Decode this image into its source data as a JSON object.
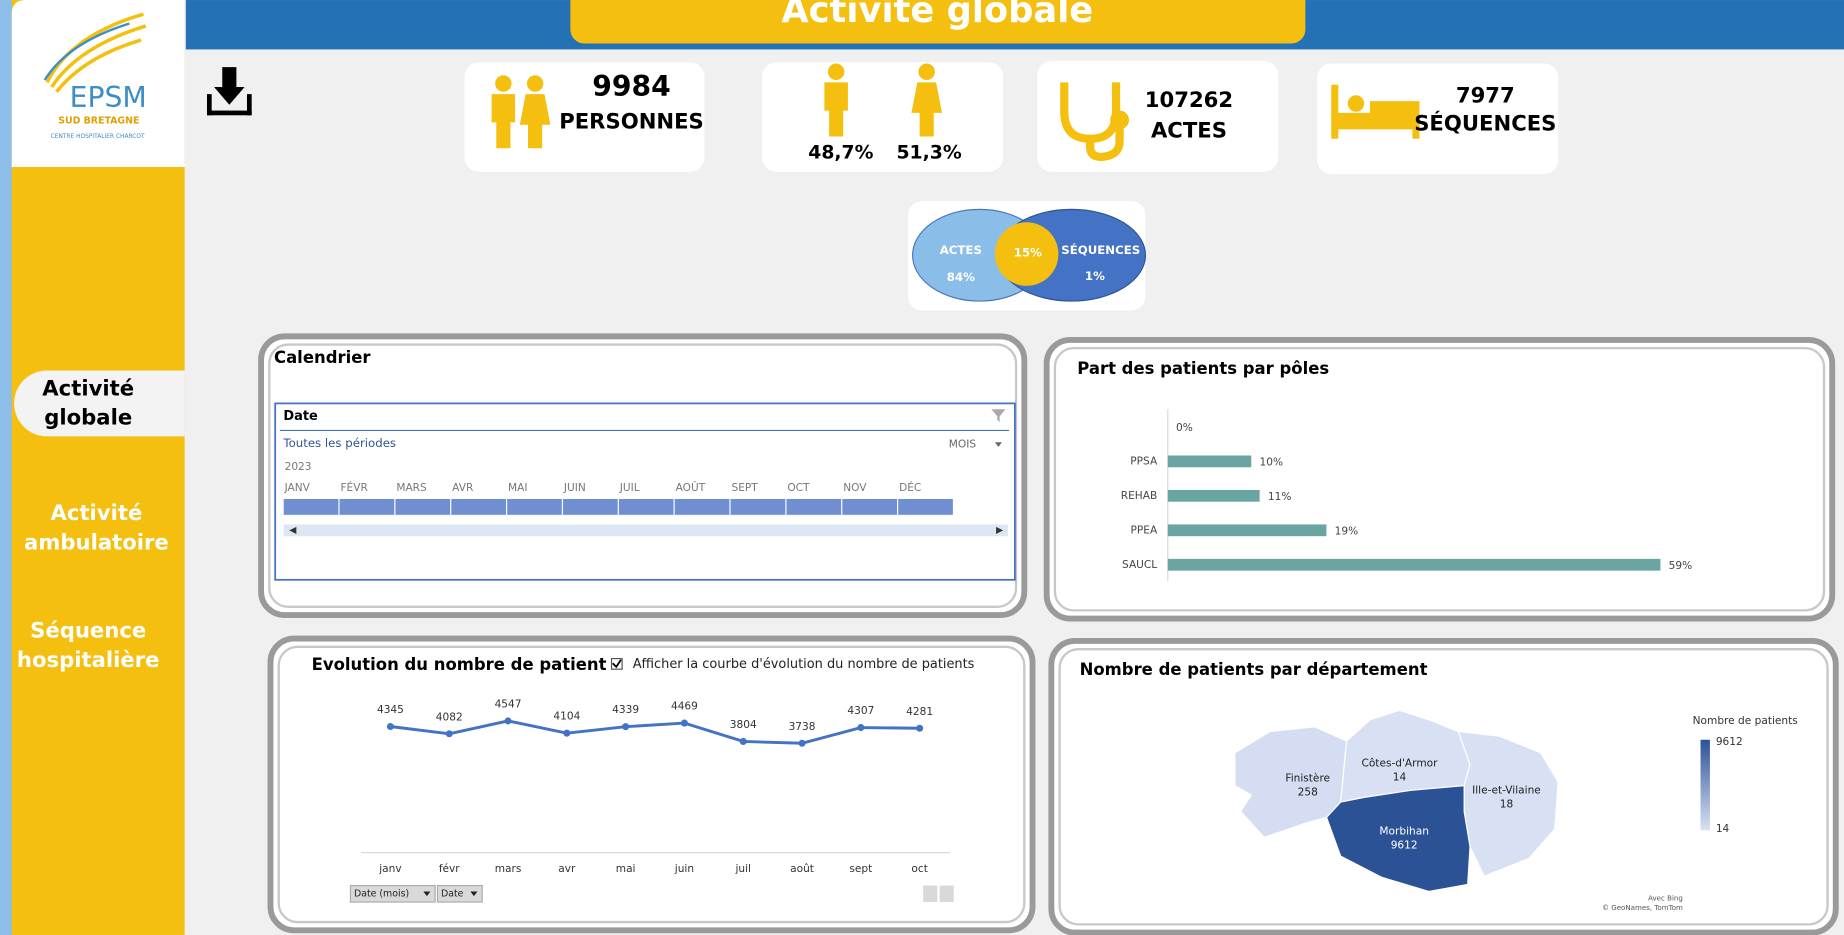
{
  "header": {
    "title": "Activité globale"
  },
  "logo": {
    "name": "EPSM",
    "subtitle": "SUD BRETAGNE",
    "caption": "CENTRE HOSPITALIER CHARCOT"
  },
  "nav": [
    {
      "lines": [
        "Activité",
        "globale"
      ],
      "active": true
    },
    {
      "lines": [
        "Activité",
        "ambulatoire"
      ],
      "active": false
    },
    {
      "lines": [
        "Séquence",
        "hospitalière"
      ],
      "active": false
    }
  ],
  "kpis": {
    "persons": {
      "value": 9984,
      "label": "PERSONNES"
    },
    "gender": {
      "male": "48,7%",
      "female": "51,3%"
    },
    "acts": {
      "value": 107262,
      "label": "ACTES"
    },
    "sequences": {
      "value": 7977,
      "label": "SÉQUENCES"
    }
  },
  "venn": {
    "left_label": "ACTES",
    "left_value": "84%",
    "overlap": "15%",
    "right_label": "SÉQUENCES",
    "right_value": "1%"
  },
  "calendar": {
    "title": "Calendrier",
    "field": "Date",
    "period": "Toutes les périodes",
    "level": "MOIS",
    "year": "2023",
    "months": [
      "JANV",
      "FÉVR",
      "MARS",
      "AVR",
      "MAI",
      "JUIN",
      "JUIL",
      "AOÛT",
      "SEPT",
      "OCT",
      "NOV",
      "DÉC"
    ]
  },
  "poles": {
    "type": "bar",
    "title": "Part des patients par pôles",
    "categories": [
      null,
      "PPSA",
      "REHAB",
      "PPEA",
      "SAUCL"
    ],
    "values": [
      0,
      10,
      11,
      19,
      59
    ],
    "value_labels": [
      "0%",
      "10%",
      "11%",
      "19%",
      "59%"
    ],
    "color": "#6aa5a2"
  },
  "evolution": {
    "type": "line",
    "title": "Evolution du nombre de patient",
    "checkbox": "Afficher la courbe d'évolution du nombre de patients",
    "categories": [
      "janv",
      "févr",
      "mars",
      "avr",
      "mai",
      "juin",
      "juil",
      "août",
      "sept",
      "oct"
    ],
    "values": [
      4345,
      4082,
      4547,
      4104,
      4339,
      4469,
      3804,
      3738,
      4307,
      4281
    ],
    "color": "#4472c4",
    "filters": [
      "Date (mois)",
      "Date"
    ]
  },
  "map": {
    "type": "map",
    "title": "Nombre de patients par département",
    "legend_title": "Nombre de patients",
    "legend_max": 9612,
    "legend_min": 14,
    "regions": [
      {
        "name": "Finistère",
        "value": 258
      },
      {
        "name": "Côtes-d'Armor",
        "value": 14
      },
      {
        "name": "Ille-et-Vilaine",
        "value": 18
      },
      {
        "name": "Morbihan",
        "value": 9612
      }
    ],
    "credits": [
      "Avec Bing",
      "© GeoNames, TomTom"
    ]
  }
}
